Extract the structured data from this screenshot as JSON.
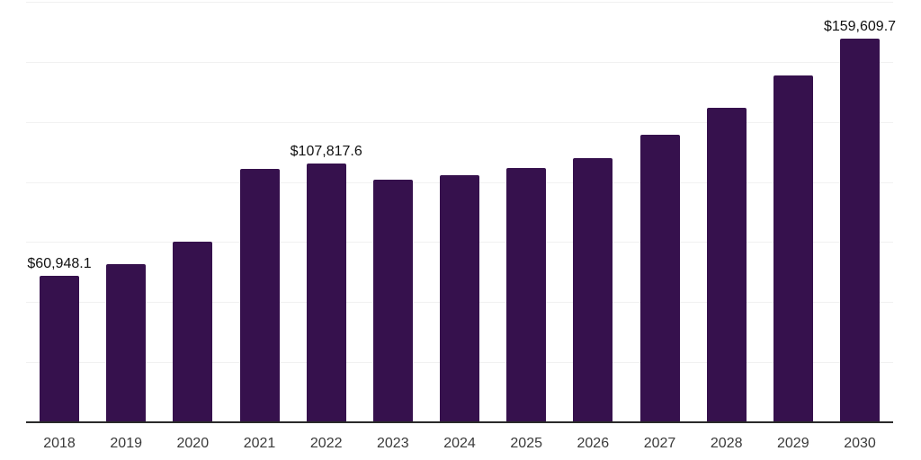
{
  "chart": {
    "background_color": "#ffffff",
    "bar_color": "#36114d",
    "grid_color": "#f1f1f1",
    "axis_line_color": "#2a2a2a",
    "tick_label_color": "#3a3a3a",
    "data_label_color": "#111111"
  },
  "chart_data": {
    "type": "bar",
    "title": "",
    "xlabel": "",
    "ylabel": "",
    "categories": [
      "2018",
      "2019",
      "2020",
      "2021",
      "2022",
      "2023",
      "2024",
      "2025",
      "2026",
      "2027",
      "2028",
      "2029",
      "2030"
    ],
    "values": [
      60948.1,
      65800,
      75300,
      105600,
      107817.6,
      100800,
      103000,
      106000,
      110100,
      119800,
      131000,
      144400,
      159609.7
    ],
    "data_labels": [
      {
        "index": 0,
        "text": "$60,948.1"
      },
      {
        "index": 4,
        "text": "$107,817.6"
      },
      {
        "index": 12,
        "text": "$159,609.7"
      }
    ],
    "ylim": [
      0,
      175000
    ],
    "grid_step": 25000,
    "grid": "horizontal-only",
    "y_axis_tick_labels_visible": false,
    "legend_position": "none"
  }
}
